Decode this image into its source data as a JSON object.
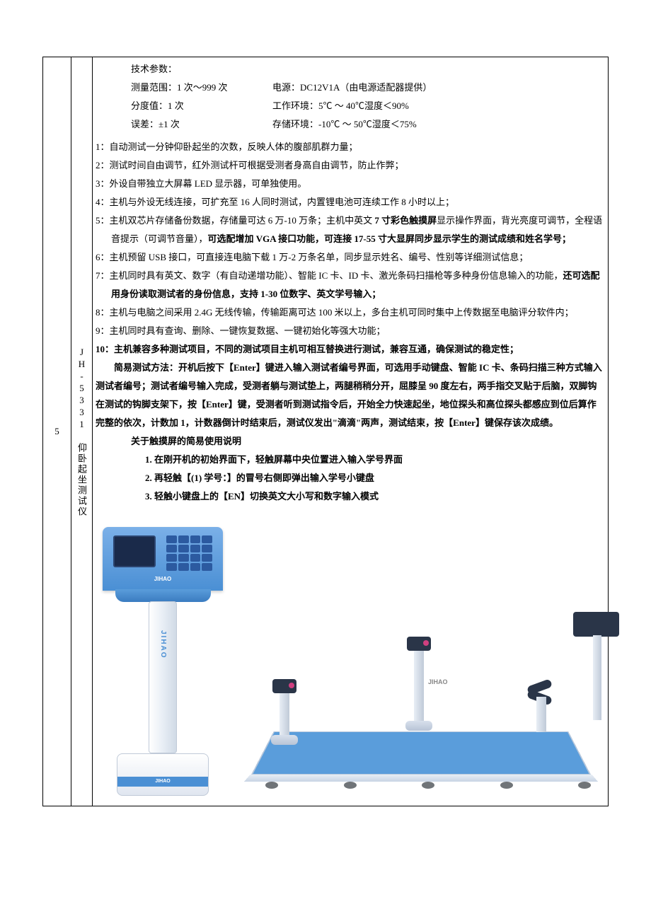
{
  "row_number": "5",
  "product_name": "JH-5331 仰卧起坐测试仪",
  "tech_params_title": "技术参数：",
  "params": {
    "range_label": "测量范围：",
    "range_value": "1 次～999 次",
    "power_label": "电源：",
    "power_value": "DC12V1A（由电源适配器提供）",
    "division_label": "分度值：",
    "division_value": "1 次",
    "work_env_label": "工作环境：",
    "work_env_value": "5℃ ～ 40℃湿度＜90%",
    "error_label": "误差：",
    "error_value": "±1 次",
    "storage_env_label": "存储环境：",
    "storage_env_value": "-10℃ ～ 50℃湿度＜75%"
  },
  "specs": [
    "1：自动测试一分钟仰卧起坐的次数，反映人体的腹部肌群力量；",
    "2：测试时间自由调节，红外测试杆可根据受测者身高自由调节，防止作弊；",
    "3：外设自带独立大屏幕 LED 显示器，可单独使用。",
    "4：主机与外设无线连接，可扩充至 16 人同时测试，内置锂电池可连续工作 8 小时以上；"
  ],
  "spec5_part1": "5：主机双芯片存储备份数据，存储量可达 6 万-10 万条；主机中英文 ",
  "spec5_bold1": "7 寸彩色触摸屏",
  "spec5_part2": "显示操作界面，背光亮度可调节，全程语音提示（可调节音量），",
  "spec5_bold2": "可选配增加 VGA 接口功能，可连接 17-55 寸大显屏同步显示学生的测试成绩和姓名学号；",
  "spec6": "6：主机预留 USB 接口，可直接连电脑下载 1 万-2 万条名单，同步显示姓名、编号、性别等详细测试信息；",
  "spec7_part1": "7：主机同时具有英文、数字（有自动递增功能）、智能 IC 卡、ID 卡、激光条码扫描枪等多种身份信息输入的功能，",
  "spec7_bold": "还可选配用身份读取测试者的身份信息，支持 1-30 位数字、英文学号输入；",
  "spec8": "8：主机与电脑之间采用 2.4G 无线传输，传输距离可达 100 米以上，多台主机可同时集中上传数据至电脑评分软件内；",
  "spec9": "9：主机同时具有查询、删除、一键恢复数据、一键初始化等强大功能；",
  "spec10": "10：主机兼容多种测试项目，不同的测试项目主机可相互替换进行测试，兼容互通，确保测试的稳定性；",
  "test_method_label": "简易测试方法：",
  "test_method_text": "开机后按下【Enter】键进入输入测试者编号界面，可选用手动键盘、智能 IC 卡、条码扫描三种方式输入测试者编号；测试者编号输入完成，受测者躺与测试垫上，两腿稍稍分开，屈膝呈 90 度左右，两手指交叉贴于后脑，双脚钩在测试的钩脚支架下，按【Enter】键，受测者听到测试指令后，开始全力快速起坐，地位探头和高位探头都感应到位后算作完整的依次，计数加 1，计数器倒计时结束后，测试仪发出\"滴滴\"两声，测试结束，按【Enter】键保存该次成绩。",
  "touch_title": "关于触摸屏的简易使用说明",
  "touch_items": [
    "1. 在刚开机的初始界面下，轻触屏幕中央位置进入输入学号界面",
    "2. 再轻触【(1) 学号：】的冒号右侧即弹出输入学号小键盘",
    "3. 轻触小键盘上的【EN】切换英文大小写和数字输入模式"
  ],
  "brand_text": "JIHAO",
  "pole_brand": "JIHAO",
  "colors": {
    "text": "#000000",
    "border": "#000000",
    "background": "#ffffff",
    "device_blue": "#5a9ddb",
    "device_dark_blue": "#4a8fd4",
    "device_navy": "#2a3548",
    "device_light": "#e8eef5",
    "sensor_pink": "#d04080"
  }
}
